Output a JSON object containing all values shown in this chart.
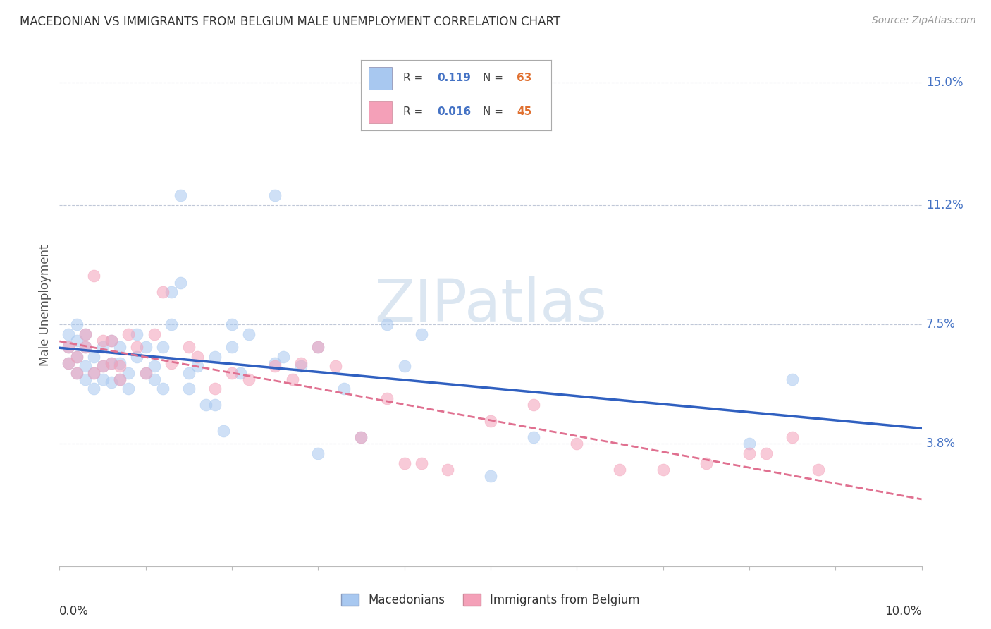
{
  "title": "MACEDONIAN VS IMMIGRANTS FROM BELGIUM MALE UNEMPLOYMENT CORRELATION CHART",
  "source": "Source: ZipAtlas.com",
  "ylabel": "Male Unemployment",
  "ytick_vals": [
    0.038,
    0.075,
    0.112,
    0.15
  ],
  "ytick_labels": [
    "3.8%",
    "7.5%",
    "11.2%",
    "15.0%"
  ],
  "xlim": [
    0.0,
    0.1
  ],
  "ylim": [
    0.0,
    0.162
  ],
  "watermark": "ZIPatlas",
  "color_macedonian": "#A8C8F0",
  "color_belgium": "#F4A0B8",
  "color_line_macedonian": "#3060C0",
  "color_line_belgium": "#E07090",
  "mac_R": "0.119",
  "mac_N": "63",
  "bel_R": "0.016",
  "bel_N": "45",
  "macedonian_x": [
    0.001,
    0.001,
    0.001,
    0.002,
    0.002,
    0.002,
    0.002,
    0.003,
    0.003,
    0.003,
    0.003,
    0.004,
    0.004,
    0.004,
    0.005,
    0.005,
    0.005,
    0.006,
    0.006,
    0.006,
    0.007,
    0.007,
    0.007,
    0.008,
    0.008,
    0.009,
    0.009,
    0.01,
    0.01,
    0.011,
    0.011,
    0.012,
    0.012,
    0.013,
    0.013,
    0.014,
    0.014,
    0.015,
    0.015,
    0.016,
    0.017,
    0.018,
    0.018,
    0.019,
    0.02,
    0.021,
    0.022,
    0.025,
    0.026,
    0.028,
    0.03,
    0.033,
    0.035,
    0.038,
    0.04,
    0.042,
    0.05,
    0.055,
    0.08,
    0.085,
    0.02,
    0.025,
    0.03
  ],
  "macedonian_y": [
    0.063,
    0.068,
    0.072,
    0.06,
    0.065,
    0.07,
    0.075,
    0.058,
    0.062,
    0.068,
    0.072,
    0.06,
    0.065,
    0.055,
    0.058,
    0.062,
    0.068,
    0.057,
    0.063,
    0.07,
    0.058,
    0.063,
    0.068,
    0.06,
    0.055,
    0.072,
    0.065,
    0.06,
    0.068,
    0.058,
    0.062,
    0.055,
    0.068,
    0.075,
    0.085,
    0.088,
    0.115,
    0.055,
    0.06,
    0.062,
    0.05,
    0.065,
    0.05,
    0.042,
    0.068,
    0.06,
    0.072,
    0.115,
    0.065,
    0.062,
    0.068,
    0.055,
    0.04,
    0.075,
    0.062,
    0.072,
    0.028,
    0.04,
    0.038,
    0.058,
    0.075,
    0.063,
    0.035
  ],
  "belgium_x": [
    0.001,
    0.001,
    0.002,
    0.002,
    0.003,
    0.003,
    0.004,
    0.004,
    0.005,
    0.005,
    0.006,
    0.006,
    0.007,
    0.007,
    0.008,
    0.009,
    0.01,
    0.011,
    0.012,
    0.013,
    0.015,
    0.016,
    0.018,
    0.02,
    0.022,
    0.025,
    0.027,
    0.028,
    0.03,
    0.032,
    0.035,
    0.038,
    0.04,
    0.042,
    0.045,
    0.05,
    0.055,
    0.06,
    0.065,
    0.07,
    0.075,
    0.08,
    0.082,
    0.085,
    0.088
  ],
  "belgium_y": [
    0.063,
    0.068,
    0.06,
    0.065,
    0.068,
    0.072,
    0.06,
    0.09,
    0.062,
    0.07,
    0.063,
    0.07,
    0.058,
    0.062,
    0.072,
    0.068,
    0.06,
    0.072,
    0.085,
    0.063,
    0.068,
    0.065,
    0.055,
    0.06,
    0.058,
    0.062,
    0.058,
    0.063,
    0.068,
    0.062,
    0.04,
    0.052,
    0.032,
    0.032,
    0.03,
    0.045,
    0.05,
    0.038,
    0.03,
    0.03,
    0.032,
    0.035,
    0.035,
    0.04,
    0.03
  ]
}
